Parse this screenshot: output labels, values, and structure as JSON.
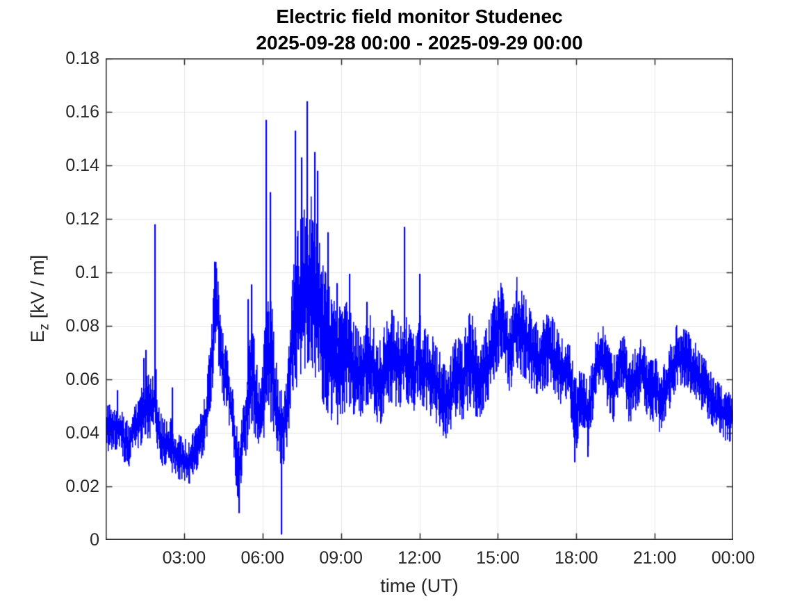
{
  "figure": {
    "title": "Electric field monitor Studenec",
    "subtitle": "2025-09-28 00:00 - 2025-09-29 00:00",
    "xlabel": "time (UT)",
    "ylabel": {
      "base": "E",
      "sub": "z",
      "rest": " [kV / m]"
    }
  },
  "colors": {
    "line": "#0000ff",
    "grid": "#e6e6e6",
    "axis": "#262626",
    "title_text": "#000000",
    "background": "#ffffff"
  },
  "chart_data": {
    "type": "line",
    "title": "Electric field monitor Studenec",
    "subtitle": "2025-09-28 00:00 - 2025-09-29 00:00",
    "xlabel": "time (UT)",
    "ylabel": "E_z [kV / m]",
    "legend": "none",
    "grid": true,
    "xlim_hours": [
      0,
      24
    ],
    "ylim": [
      0,
      0.18
    ],
    "x_ticks": [
      {
        "t": 3,
        "label": "03:00"
      },
      {
        "t": 6,
        "label": "06:00"
      },
      {
        "t": 9,
        "label": "09:00"
      },
      {
        "t": 12,
        "label": "12:00"
      },
      {
        "t": 15,
        "label": "15:00"
      },
      {
        "t": 18,
        "label": "18:00"
      },
      {
        "t": 21,
        "label": "21:00"
      },
      {
        "t": 24,
        "label": "00:00"
      }
    ],
    "y_ticks": [
      {
        "v": 0,
        "label": "0"
      },
      {
        "v": 0.02,
        "label": "0.02"
      },
      {
        "v": 0.04,
        "label": "0.04"
      },
      {
        "v": 0.06,
        "label": "0.06"
      },
      {
        "v": 0.08,
        "label": "0.08"
      },
      {
        "v": 0.1,
        "label": "0.1"
      },
      {
        "v": 0.12,
        "label": "0.12"
      },
      {
        "v": 0.14,
        "label": "0.14"
      },
      {
        "v": 0.16,
        "label": "0.16"
      },
      {
        "v": 0.18,
        "label": "0.18"
      }
    ],
    "line_color": "#0000ff",
    "series": {
      "name": "Ez",
      "representation": "dense noisy 24 h signal read as local min-max envelope [hours, min kV/m, max kV/m]",
      "envelope_t_lo_hi": [
        [
          0.0,
          0.033,
          0.05
        ],
        [
          0.45,
          0.034,
          0.052
        ],
        [
          0.7,
          0.028,
          0.046
        ],
        [
          0.85,
          0.025,
          0.044
        ],
        [
          1.0,
          0.032,
          0.05
        ],
        [
          1.2,
          0.034,
          0.053
        ],
        [
          1.4,
          0.036,
          0.058
        ],
        [
          1.6,
          0.038,
          0.062
        ],
        [
          1.75,
          0.038,
          0.06
        ],
        [
          1.9,
          0.04,
          0.066
        ],
        [
          2.0,
          0.03,
          0.05
        ],
        [
          2.2,
          0.027,
          0.045
        ],
        [
          2.45,
          0.026,
          0.046
        ],
        [
          2.7,
          0.023,
          0.04
        ],
        [
          2.95,
          0.022,
          0.038
        ],
        [
          3.2,
          0.021,
          0.037
        ],
        [
          3.45,
          0.026,
          0.043
        ],
        [
          3.65,
          0.03,
          0.048
        ],
        [
          3.85,
          0.037,
          0.058
        ],
        [
          4.05,
          0.055,
          0.085
        ],
        [
          4.2,
          0.072,
          0.104
        ],
        [
          4.35,
          0.062,
          0.09
        ],
        [
          4.5,
          0.05,
          0.075
        ],
        [
          4.65,
          0.046,
          0.07
        ],
        [
          4.8,
          0.037,
          0.06
        ],
        [
          4.95,
          0.022,
          0.045
        ],
        [
          5.08,
          0.012,
          0.038
        ],
        [
          5.2,
          0.022,
          0.046
        ],
        [
          5.35,
          0.032,
          0.06
        ],
        [
          5.5,
          0.038,
          0.075
        ],
        [
          5.65,
          0.04,
          0.078
        ],
        [
          5.8,
          0.036,
          0.062
        ],
        [
          5.95,
          0.036,
          0.06
        ],
        [
          6.1,
          0.04,
          0.085
        ],
        [
          6.3,
          0.044,
          0.094
        ],
        [
          6.45,
          0.038,
          0.072
        ],
        [
          6.6,
          0.03,
          0.058
        ],
        [
          6.75,
          0.027,
          0.055
        ],
        [
          6.9,
          0.034,
          0.062
        ],
        [
          7.05,
          0.045,
          0.085
        ],
        [
          7.2,
          0.055,
          0.11
        ],
        [
          7.4,
          0.06,
          0.12
        ],
        [
          7.6,
          0.064,
          0.124
        ],
        [
          7.8,
          0.068,
          0.13
        ],
        [
          7.95,
          0.062,
          0.124
        ],
        [
          8.1,
          0.058,
          0.118
        ],
        [
          8.25,
          0.052,
          0.105
        ],
        [
          8.45,
          0.048,
          0.098
        ],
        [
          8.65,
          0.044,
          0.09
        ],
        [
          8.85,
          0.043,
          0.088
        ],
        [
          9.05,
          0.046,
          0.086
        ],
        [
          9.25,
          0.05,
          0.09
        ],
        [
          9.45,
          0.047,
          0.082
        ],
        [
          9.65,
          0.045,
          0.078
        ],
        [
          9.85,
          0.048,
          0.082
        ],
        [
          10.0,
          0.05,
          0.086
        ],
        [
          10.2,
          0.048,
          0.082
        ],
        [
          10.45,
          0.042,
          0.074
        ],
        [
          10.65,
          0.048,
          0.08
        ],
        [
          10.85,
          0.052,
          0.084
        ],
        [
          11.05,
          0.05,
          0.084
        ],
        [
          11.25,
          0.048,
          0.08
        ],
        [
          11.4,
          0.054,
          0.088
        ],
        [
          11.6,
          0.05,
          0.08
        ],
        [
          11.8,
          0.048,
          0.076
        ],
        [
          11.95,
          0.054,
          0.088
        ],
        [
          12.1,
          0.05,
          0.08
        ],
        [
          12.3,
          0.048,
          0.078
        ],
        [
          12.5,
          0.045,
          0.076
        ],
        [
          12.7,
          0.042,
          0.072
        ],
        [
          12.9,
          0.038,
          0.066
        ],
        [
          13.05,
          0.038,
          0.064
        ],
        [
          13.25,
          0.043,
          0.072
        ],
        [
          13.45,
          0.047,
          0.077
        ],
        [
          13.6,
          0.044,
          0.073
        ],
        [
          13.8,
          0.048,
          0.082
        ],
        [
          13.95,
          0.05,
          0.086
        ],
        [
          14.15,
          0.046,
          0.078
        ],
        [
          14.3,
          0.046,
          0.072
        ],
        [
          14.5,
          0.05,
          0.078
        ],
        [
          14.7,
          0.054,
          0.084
        ],
        [
          14.9,
          0.062,
          0.092
        ],
        [
          15.1,
          0.068,
          0.1
        ],
        [
          15.25,
          0.064,
          0.094
        ],
        [
          15.45,
          0.054,
          0.083
        ],
        [
          15.65,
          0.066,
          0.1
        ],
        [
          15.85,
          0.062,
          0.094
        ],
        [
          16.05,
          0.06,
          0.09
        ],
        [
          16.3,
          0.056,
          0.084
        ],
        [
          16.55,
          0.054,
          0.08
        ],
        [
          16.8,
          0.057,
          0.084
        ],
        [
          17.0,
          0.058,
          0.085
        ],
        [
          17.2,
          0.054,
          0.08
        ],
        [
          17.4,
          0.05,
          0.075
        ],
        [
          17.6,
          0.052,
          0.077
        ],
        [
          17.75,
          0.048,
          0.072
        ],
        [
          17.95,
          0.032,
          0.06
        ],
        [
          18.1,
          0.04,
          0.064
        ],
        [
          18.3,
          0.04,
          0.062
        ],
        [
          18.45,
          0.034,
          0.058
        ],
        [
          18.65,
          0.048,
          0.072
        ],
        [
          18.95,
          0.06,
          0.082
        ],
        [
          19.15,
          0.05,
          0.074
        ],
        [
          19.4,
          0.044,
          0.068
        ],
        [
          19.6,
          0.054,
          0.076
        ],
        [
          19.75,
          0.058,
          0.079
        ],
        [
          20.0,
          0.043,
          0.066
        ],
        [
          20.25,
          0.048,
          0.072
        ],
        [
          20.5,
          0.054,
          0.076
        ],
        [
          20.7,
          0.046,
          0.068
        ],
        [
          20.9,
          0.044,
          0.067
        ],
        [
          21.05,
          0.046,
          0.068
        ],
        [
          21.2,
          0.038,
          0.06
        ],
        [
          21.45,
          0.046,
          0.07
        ],
        [
          21.65,
          0.052,
          0.076
        ],
        [
          21.85,
          0.058,
          0.081
        ],
        [
          22.05,
          0.057,
          0.079
        ],
        [
          22.25,
          0.057,
          0.078
        ],
        [
          22.45,
          0.053,
          0.075
        ],
        [
          22.65,
          0.05,
          0.072
        ],
        [
          22.9,
          0.047,
          0.068
        ],
        [
          23.1,
          0.044,
          0.064
        ],
        [
          23.3,
          0.041,
          0.06
        ],
        [
          23.5,
          0.04,
          0.058
        ],
        [
          23.75,
          0.036,
          0.055
        ],
        [
          24.0,
          0.038,
          0.056
        ]
      ],
      "spikes_t_value": [
        [
          0.45,
          0.056
        ],
        [
          1.45,
          0.068
        ],
        [
          1.55,
          0.071
        ],
        [
          1.89,
          0.118
        ],
        [
          2.55,
          0.057
        ],
        [
          4.18,
          0.104
        ],
        [
          5.1,
          0.01
        ],
        [
          5.45,
          0.09
        ],
        [
          5.58,
          0.0955
        ],
        [
          6.15,
          0.157
        ],
        [
          6.3,
          0.13
        ],
        [
          6.72,
          0.002
        ],
        [
          7.25,
          0.153
        ],
        [
          7.5,
          0.143
        ],
        [
          7.7,
          0.164
        ],
        [
          8.0,
          0.145
        ],
        [
          8.1,
          0.138
        ],
        [
          8.5,
          0.115
        ],
        [
          8.85,
          0.096
        ],
        [
          9.33,
          0.0995
        ],
        [
          10.0,
          0.089
        ],
        [
          10.95,
          0.086
        ],
        [
          11.42,
          0.117
        ],
        [
          12.0,
          0.0995
        ],
        [
          17.95,
          0.029
        ],
        [
          18.45,
          0.031
        ]
      ]
    },
    "stats": {
      "max_value": 0.164,
      "max_time_hours": 7.7,
      "min_value": 0.002,
      "min_time_hours": 6.72
    }
  }
}
